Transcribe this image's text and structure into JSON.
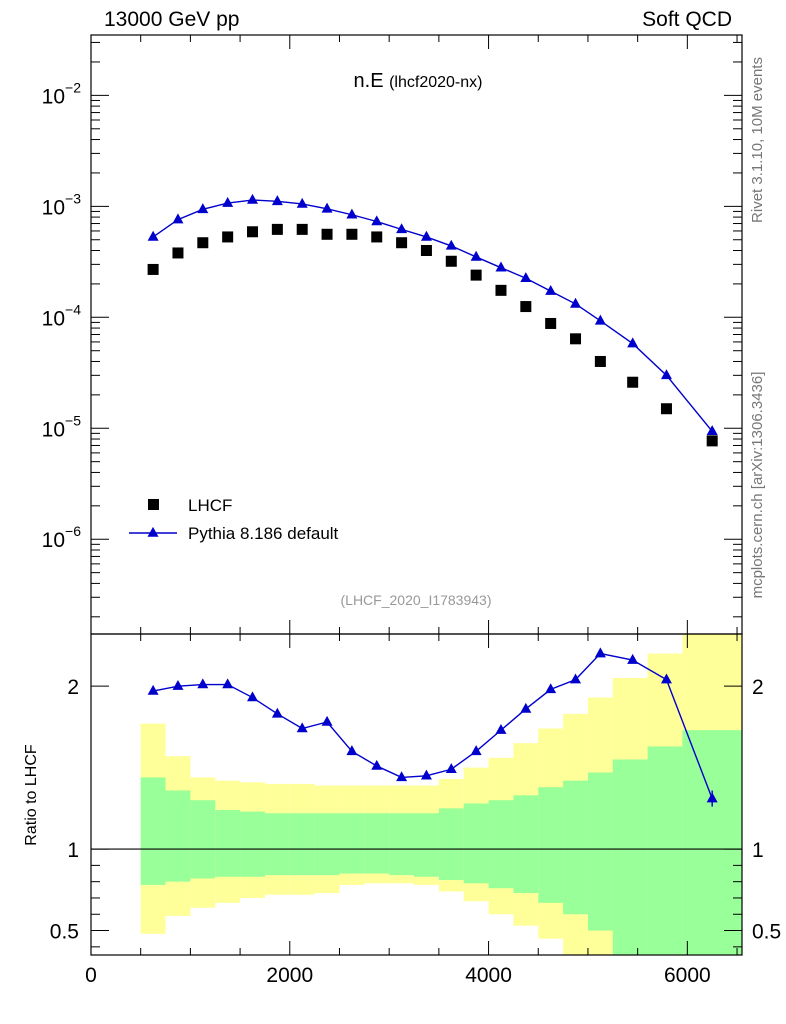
{
  "header": {
    "left": "13000 GeV pp",
    "right": "Soft QCD"
  },
  "side_text": {
    "rivet": "Rivet 3.1.10,  10M events",
    "mcplots": "mcplots.cern.ch [arXiv:1306.3436]"
  },
  "chart_data": [
    {
      "type": "scatter",
      "panel": "main",
      "title": "n.E",
      "title_sub": "(lhcf2020-nx)",
      "watermark": "(LHCF_2020_I1783943)",
      "xlabel": "",
      "ylabel": "",
      "y_scale": "log",
      "xlim": [
        0,
        6550
      ],
      "ylim": [
        1.4e-07,
        0.035
      ],
      "y_tick_labels": [
        {
          "base": "10",
          "exp": "−2",
          "value": 0.01
        },
        {
          "base": "10",
          "exp": "−3",
          "value": 0.001
        },
        {
          "base": "10",
          "exp": "−4",
          "value": 0.0001
        },
        {
          "base": "10",
          "exp": "−5",
          "value": 1e-05
        },
        {
          "base": "10",
          "exp": "−6",
          "value": 1e-06
        }
      ],
      "legend": [
        {
          "label": "LHCF",
          "marker": "square",
          "color": "#000000"
        },
        {
          "label": "Pythia 8.186 default",
          "marker": "triangle",
          "color": "#0000cc"
        }
      ],
      "x": [
        625,
        875,
        1125,
        1375,
        1625,
        1875,
        2125,
        2375,
        2625,
        2875,
        3125,
        3375,
        3625,
        3875,
        4125,
        4375,
        4625,
        4875,
        5125,
        5450,
        5790,
        6250
      ],
      "series": [
        {
          "name": "LHCF",
          "values": [
            0.00027,
            0.00038,
            0.00047,
            0.00053,
            0.00059,
            0.00062,
            0.00062,
            0.00056,
            0.00056,
            0.00053,
            0.00047,
            0.0004,
            0.00032,
            0.00024,
            0.000175,
            0.000125,
            8.8e-05,
            6.4e-05,
            4e-05,
            2.6e-05,
            1.5e-05,
            7.7e-06
          ]
        },
        {
          "name": "Pythia 8.186 default",
          "values": [
            0.00053,
            0.00076,
            0.00094,
            0.00107,
            0.00114,
            0.00111,
            0.00105,
            0.00095,
            0.00084,
            0.00073,
            0.00062,
            0.00053,
            0.00044,
            0.00035,
            0.00028,
            0.000225,
            0.000172,
            0.000132,
            9.3e-05,
            5.8e-05,
            3e-05,
            9.4e-06
          ]
        }
      ]
    },
    {
      "type": "line",
      "panel": "ratio",
      "ylabel": "Ratio to LHCF",
      "xlim": [
        0,
        6550
      ],
      "ylim": [
        0.35,
        2.32
      ],
      "x_ticks": [
        0,
        2000,
        4000,
        6000
      ],
      "y_ticks": [
        0.5,
        1,
        2
      ],
      "bands": {
        "bin_edges": [
          500,
          750,
          1000,
          1250,
          1500,
          1750,
          2000,
          2250,
          2500,
          2750,
          3000,
          3250,
          3500,
          3750,
          4000,
          4250,
          4500,
          4750,
          5000,
          5250,
          5600,
          5950,
          6550
        ],
        "stat_upper": [
          1.44,
          1.36,
          1.3,
          1.24,
          1.23,
          1.22,
          1.22,
          1.22,
          1.22,
          1.22,
          1.22,
          1.22,
          1.25,
          1.28,
          1.3,
          1.33,
          1.38,
          1.42,
          1.47,
          1.55,
          1.63,
          1.73
        ],
        "stat_lower": [
          0.78,
          0.8,
          0.82,
          0.83,
          0.83,
          0.84,
          0.84,
          0.84,
          0.85,
          0.85,
          0.84,
          0.83,
          0.81,
          0.79,
          0.76,
          0.73,
          0.67,
          0.6,
          0.5,
          0.35,
          0.35,
          0.35
        ],
        "total_upper": [
          1.77,
          1.57,
          1.44,
          1.42,
          1.41,
          1.4,
          1.4,
          1.39,
          1.39,
          1.39,
          1.39,
          1.39,
          1.43,
          1.5,
          1.56,
          1.65,
          1.74,
          1.83,
          1.93,
          2.05,
          2.2,
          2.35
        ],
        "total_lower": [
          0.48,
          0.59,
          0.64,
          0.67,
          0.7,
          0.72,
          0.72,
          0.73,
          0.78,
          0.79,
          0.79,
          0.78,
          0.74,
          0.68,
          0.6,
          0.53,
          0.45,
          0.35,
          0.35,
          0.35,
          0.35,
          0.35
        ]
      },
      "x": [
        625,
        875,
        1125,
        1375,
        1625,
        1875,
        2125,
        2375,
        2625,
        2875,
        3125,
        3375,
        3625,
        3875,
        4125,
        4375,
        4625,
        4875,
        5125,
        5450,
        5790,
        6250
      ],
      "series": [
        {
          "name": "Pythia 8.186 default / LHCF",
          "values": [
            1.97,
            2.0,
            2.01,
            2.01,
            1.93,
            1.83,
            1.74,
            1.78,
            1.6,
            1.51,
            1.44,
            1.45,
            1.49,
            1.6,
            1.73,
            1.86,
            1.98,
            2.04,
            2.2,
            2.16,
            2.04,
            1.31
          ]
        }
      ]
    }
  ],
  "colors": {
    "data": "#000000",
    "mc": "#0000cc",
    "stat_band": "#99ff99",
    "total_band": "#ffff99",
    "watermark": "#999999",
    "side_text": "#777777"
  }
}
